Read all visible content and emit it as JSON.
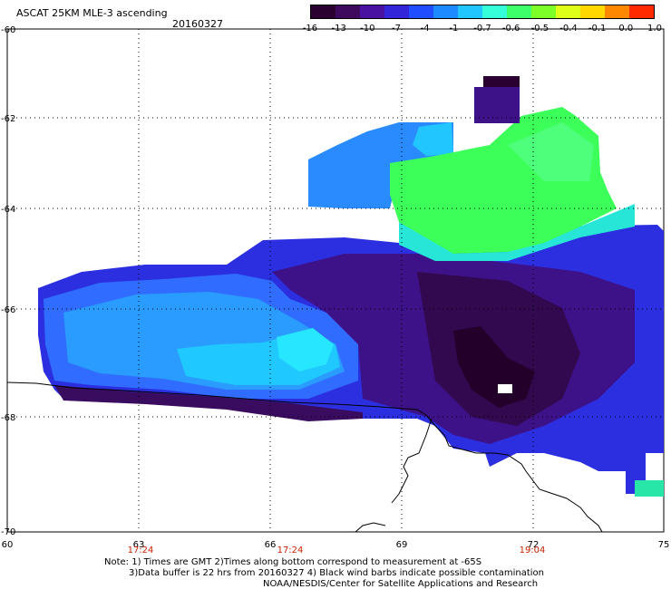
{
  "title": "ASCAT 25KM MLE-3 ascending",
  "date": "20160327",
  "colorbar": {
    "labels": [
      "-16",
      "-13",
      "-10",
      "-7",
      "-4",
      "-1",
      "-0.7",
      "-0.6",
      "-0.5",
      "-0.4",
      "-0.1",
      "0.0",
      "1.0"
    ],
    "colors": [
      "#2a0030",
      "#3d0a5e",
      "#4a12a0",
      "#3325d8",
      "#1f4dff",
      "#1d8bff",
      "#22c6ff",
      "#35ffd8",
      "#3dff6a",
      "#7dff28",
      "#ddff18",
      "#ffd800",
      "#ff8800",
      "#ff2a00"
    ]
  },
  "axes": {
    "lat_labels": [
      "-60",
      "-62",
      "-64",
      "-66",
      "-68",
      "-70"
    ],
    "lon_labels": [
      "60",
      "63",
      "66",
      "69",
      "72",
      "75"
    ],
    "times": [
      "17:24",
      "17:24",
      "19:04"
    ]
  },
  "notes": {
    "line1": "Note: 1) Times are GMT 2)Times along bottom correspond to measurement at -65S",
    "line2": "3)Data buffer is 22 hrs from 20160327 4) Black wind barbs indicate possible contamination",
    "line3": "NOAA/NESDIS/Center for Satellite Applications and Research"
  }
}
